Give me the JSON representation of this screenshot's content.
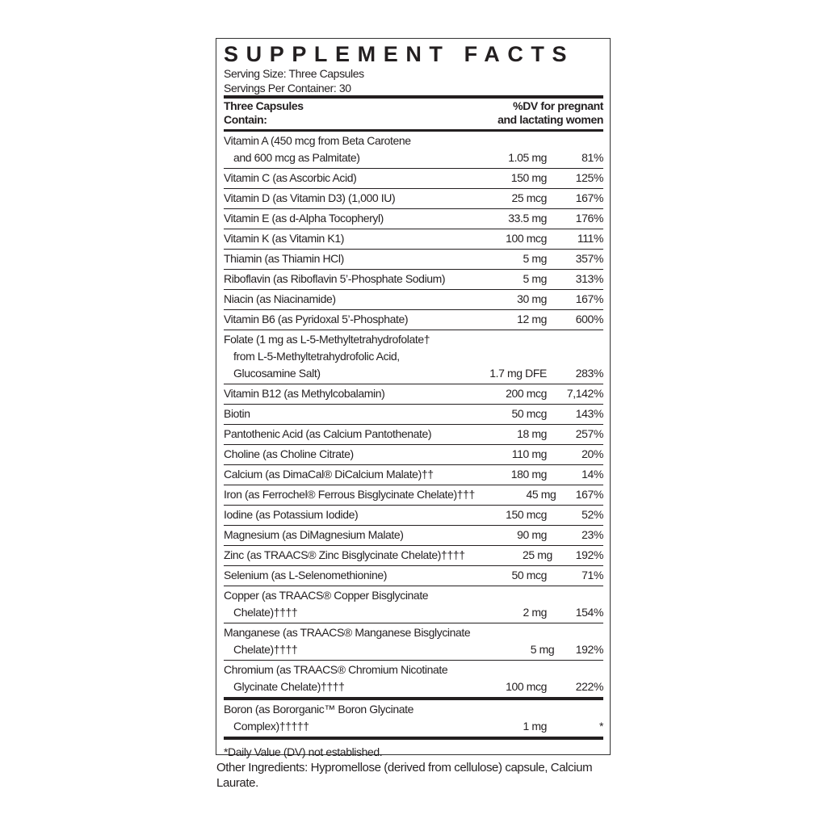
{
  "title": "SUPPLEMENT FACTS",
  "serving_size": "Serving Size: Three Capsules",
  "servings_per_container": "Servings Per Container: 30",
  "header": {
    "left_line1": "Three Capsules",
    "left_line2": "Contain:",
    "right_line1": "%DV for pregnant",
    "right_line2": "and lactating women"
  },
  "rows": [
    {
      "lines": [
        "Vitamin A (450 mcg from Beta Carotene",
        "and 600 mcg as Palmitate)"
      ],
      "amount": "1.05 mg",
      "dv": "81%"
    },
    {
      "lines": [
        "Vitamin C (as Ascorbic Acid)"
      ],
      "amount": "150 mg",
      "dv": "125%"
    },
    {
      "lines": [
        "Vitamin D (as Vitamin D3) (1,000 IU)"
      ],
      "amount": "25 mcg",
      "dv": "167%"
    },
    {
      "lines": [
        "Vitamin E (as d-Alpha Tocopheryl)"
      ],
      "amount": "33.5 mg",
      "dv": "176%"
    },
    {
      "lines": [
        "Vitamin K (as Vitamin K1)"
      ],
      "amount": "100 mcg",
      "dv": "111%"
    },
    {
      "lines": [
        "Thiamin (as Thiamin HCl)"
      ],
      "amount": "5 mg",
      "dv": "357%"
    },
    {
      "lines": [
        "Riboflavin (as Riboflavin 5’-Phosphate Sodium)"
      ],
      "amount": "5 mg",
      "dv": "313%"
    },
    {
      "lines": [
        "Niacin (as Niacinamide)"
      ],
      "amount": "30 mg",
      "dv": "167%"
    },
    {
      "lines": [
        "Vitamin B6 (as Pyridoxal 5’-Phosphate)"
      ],
      "amount": "12 mg",
      "dv": "600%"
    },
    {
      "lines": [
        "Folate (1 mg as L-5-Methyltetrahydrofolate†",
        "from L-5-Methyltetrahydrofolic Acid,",
        "Glucosamine Salt)"
      ],
      "amount": "1.7 mg DFE",
      "dv": "283%"
    },
    {
      "lines": [
        "Vitamin B12 (as Methylcobalamin)"
      ],
      "amount": "200 mcg",
      "dv": "7,142%"
    },
    {
      "lines": [
        "Biotin"
      ],
      "amount": "50 mcg",
      "dv": "143%"
    },
    {
      "lines": [
        "Pantothenic Acid (as Calcium Pantothenate)"
      ],
      "amount": "18 mg",
      "dv": "257%"
    },
    {
      "lines": [
        "Choline (as Choline Citrate)"
      ],
      "amount": "110 mg",
      "dv": "20%"
    },
    {
      "lines": [
        "Calcium (as DimaCal® DiCalcium Malate)††"
      ],
      "amount": "180 mg",
      "dv": "14%"
    },
    {
      "lines": [
        "Iron (as Ferrochel® Ferrous Bisglycinate Chelate)†††"
      ],
      "amount": "45 mg",
      "dv": "167%"
    },
    {
      "lines": [
        "Iodine (as Potassium Iodide)"
      ],
      "amount": "150 mcg",
      "dv": "52%"
    },
    {
      "lines": [
        "Magnesium (as DiMagnesium Malate)"
      ],
      "amount": "90 mg",
      "dv": "23%"
    },
    {
      "lines": [
        "Zinc (as TRAACS® Zinc Bisglycinate Chelate)††††"
      ],
      "amount": "25 mg",
      "dv": "192%"
    },
    {
      "lines": [
        "Selenium (as L-Selenomethionine)"
      ],
      "amount": "50 mcg",
      "dv": "71%"
    },
    {
      "lines": [
        "Copper (as TRAACS® Copper Bisglycinate",
        "Chelate)††††"
      ],
      "amount": "2 mg",
      "dv": "154%"
    },
    {
      "lines": [
        "Manganese (as TRAACS® Manganese Bisglycinate",
        "Chelate)††††"
      ],
      "amount": "5 mg",
      "dv": "192%"
    },
    {
      "lines": [
        "Chromium (as TRAACS® Chromium Nicotinate",
        "Glycinate Chelate)††††"
      ],
      "amount": "100 mcg",
      "dv": "222%"
    },
    {
      "lines": [
        "Boron (as Bororganic™ Boron Glycinate",
        "Complex)†††††"
      ],
      "amount": "1 mg",
      "dv": "*",
      "heavy_top": true
    }
  ],
  "footnote": "*Daily Value (DV) not established.",
  "other_ingredients": "Other Ingredients: Hypromellose (derived from cellulose) capsule, Calcium Laurate."
}
